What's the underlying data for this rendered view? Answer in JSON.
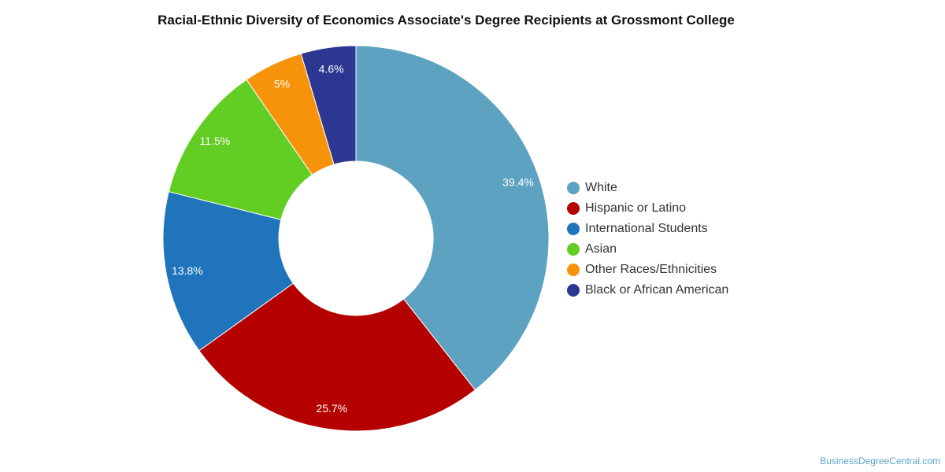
{
  "chart_data": {
    "type": "pie",
    "title": "Racial-Ethnic Diversity of Economics Associate's Degree Recipients at Grossmont College",
    "donut": true,
    "legend_position": "right",
    "slices": [
      {
        "label": "White",
        "value": 39.4,
        "display": "39.4%",
        "color": "#5da3c1"
      },
      {
        "label": "Hispanic or Latino",
        "value": 25.7,
        "display": "25.7%",
        "color": "#b50000"
      },
      {
        "label": "International Students",
        "value": 13.8,
        "display": "13.8%",
        "color": "#1f74bb"
      },
      {
        "label": "Asian",
        "value": 11.5,
        "display": "11.5%",
        "color": "#62cd23"
      },
      {
        "label": "Other Races/Ethnicities",
        "value": 5.0,
        "display": "5%",
        "color": "#f7930a"
      },
      {
        "label": "Black or African American",
        "value": 4.6,
        "display": "4.6%",
        "color": "#2c3791"
      }
    ]
  },
  "credit": "BusinessDegreeCentral.com"
}
